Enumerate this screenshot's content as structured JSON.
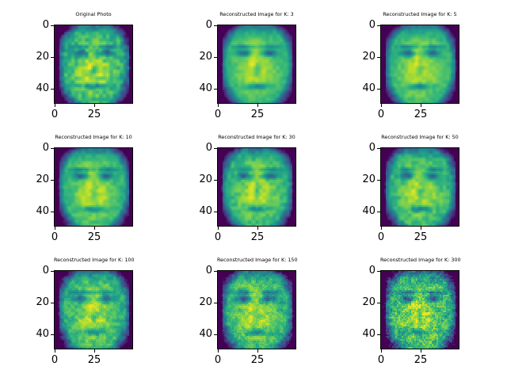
{
  "chart_data": {
    "type": "heatmap",
    "figure_size": "640x480",
    "colormap": "viridis",
    "image_size": [
      50,
      50
    ],
    "panels": [
      {
        "title": "Original Photo",
        "k": null
      },
      {
        "title": "Reconstructed Image for K: 3",
        "k": 3
      },
      {
        "title": "Reconstructed Image for K: 5",
        "k": 5
      },
      {
        "title": "Reconstructed Image for K: 10",
        "k": 10
      },
      {
        "title": "Reconstructed Image for K: 30",
        "k": 30
      },
      {
        "title": "Reconstructed Image for K: 50",
        "k": 50
      },
      {
        "title": "Reconstructed Image for K: 100",
        "k": 100
      },
      {
        "title": "Reconstructed Image for K: 150",
        "k": 150
      },
      {
        "title": "Reconstructed Image for K: 300",
        "k": 300
      }
    ],
    "x_ticks": [
      "0",
      "25"
    ],
    "y_ticks": [
      "0",
      "20",
      "40"
    ],
    "xlim": [
      0,
      50
    ],
    "ylim": [
      50,
      0
    ]
  }
}
